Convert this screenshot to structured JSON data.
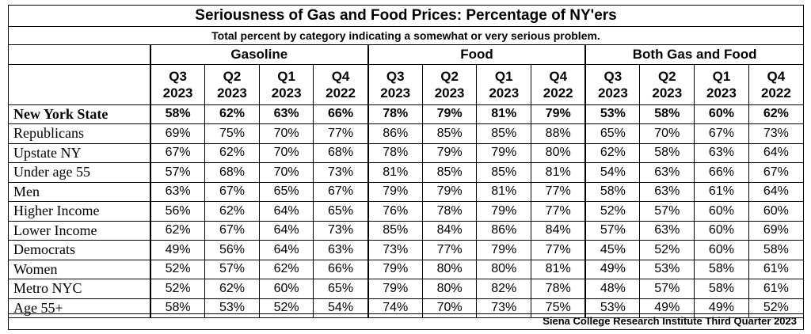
{
  "title": "Seriousness of Gas and Food Prices:  Percentage of NY'ers",
  "subtitle": "Total percent by category indicating a somewhat or very serious problem.",
  "source": "Siena College Research Institute Third Quarter 2023",
  "chart_data": {
    "type": "table",
    "groups": [
      "Gasoline",
      "Food",
      "Both Gas and Food"
    ],
    "columns": [
      {
        "q": "Q3",
        "year": "2023"
      },
      {
        "q": "Q2",
        "year": "2023"
      },
      {
        "q": "Q1",
        "year": "2023"
      },
      {
        "q": "Q4",
        "year": "2022"
      }
    ],
    "rows": [
      {
        "label": "New York State",
        "values": [
          "58%",
          "62%",
          "63%",
          "66%",
          "78%",
          "79%",
          "81%",
          "79%",
          "53%",
          "58%",
          "60%",
          "62%"
        ]
      },
      {
        "label": "Republicans",
        "values": [
          "69%",
          "75%",
          "70%",
          "77%",
          "86%",
          "85%",
          "85%",
          "88%",
          "65%",
          "70%",
          "67%",
          "73%"
        ]
      },
      {
        "label": "Upstate NY",
        "values": [
          "67%",
          "62%",
          "70%",
          "68%",
          "78%",
          "79%",
          "79%",
          "80%",
          "62%",
          "58%",
          "63%",
          "64%"
        ]
      },
      {
        "label": "Under age 55",
        "values": [
          "57%",
          "68%",
          "70%",
          "73%",
          "81%",
          "85%",
          "85%",
          "81%",
          "54%",
          "63%",
          "66%",
          "67%"
        ]
      },
      {
        "label": "Men",
        "values": [
          "63%",
          "67%",
          "65%",
          "67%",
          "79%",
          "79%",
          "81%",
          "77%",
          "58%",
          "63%",
          "61%",
          "64%"
        ]
      },
      {
        "label": "Higher Income",
        "values": [
          "56%",
          "62%",
          "64%",
          "65%",
          "76%",
          "78%",
          "79%",
          "77%",
          "52%",
          "57%",
          "60%",
          "60%"
        ]
      },
      {
        "label": "Lower Income",
        "values": [
          "62%",
          "67%",
          "64%",
          "73%",
          "85%",
          "84%",
          "86%",
          "84%",
          "57%",
          "63%",
          "60%",
          "69%"
        ]
      },
      {
        "label": "Democrats",
        "values": [
          "49%",
          "56%",
          "64%",
          "63%",
          "73%",
          "77%",
          "79%",
          "77%",
          "45%",
          "52%",
          "60%",
          "58%"
        ]
      },
      {
        "label": "Women",
        "values": [
          "52%",
          "57%",
          "62%",
          "66%",
          "79%",
          "80%",
          "80%",
          "81%",
          "49%",
          "53%",
          "58%",
          "61%"
        ]
      },
      {
        "label": "Metro NYC",
        "values": [
          "52%",
          "62%",
          "60%",
          "65%",
          "79%",
          "80%",
          "82%",
          "78%",
          "48%",
          "57%",
          "58%",
          "61%"
        ]
      },
      {
        "label": "Age 55+",
        "values": [
          "58%",
          "53%",
          "52%",
          "54%",
          "74%",
          "70%",
          "73%",
          "75%",
          "53%",
          "49%",
          "49%",
          "52%"
        ]
      }
    ]
  }
}
